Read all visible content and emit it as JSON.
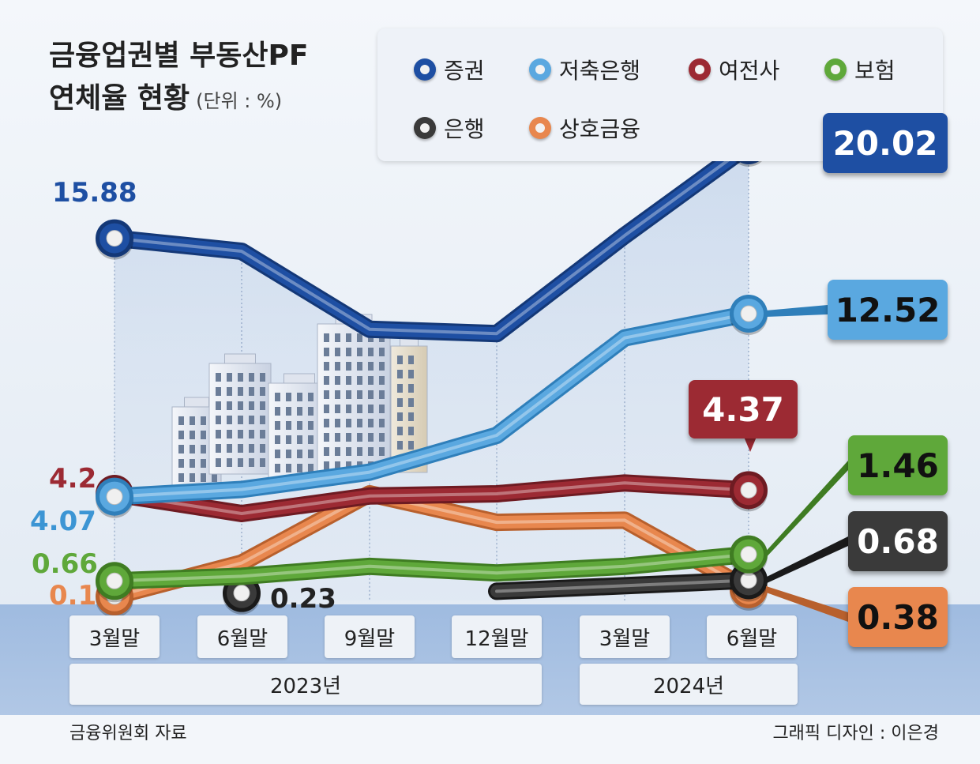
{
  "title_line1": "금융업권별 부동산PF",
  "title_line2": "연체율 현황",
  "unit": "(단위 : %)",
  "source": "금융위원회 자료",
  "credit": "그래픽 디자인 : 이은경",
  "year_labels": [
    "2023년",
    "2024년"
  ],
  "colors": {
    "securities": "#1e4fa3",
    "savings_bank": "#5aa8e0",
    "card_capital": "#9c2a33",
    "insurance": "#5fa83a",
    "bank": "#3a3a3a",
    "mutual_finance": "#e8874e"
  },
  "chart_data": {
    "type": "line",
    "categories": [
      "3월말",
      "6월말",
      "9월말",
      "12월말",
      "3월말",
      "6월말"
    ],
    "series": [
      {
        "name": "증권",
        "values": [
          15.88,
          15.3,
          11.8,
          11.6,
          16.0,
          20.02
        ]
      },
      {
        "name": "저축은행",
        "values": [
          4.07,
          4.4,
          5.2,
          6.9,
          11.4,
          12.52
        ]
      },
      {
        "name": "여전사",
        "values": [
          4.2,
          3.3,
          4.1,
          4.2,
          4.7,
          4.37
        ]
      },
      {
        "name": "보험",
        "values": [
          0.66,
          0.8,
          1.1,
          0.9,
          1.1,
          1.46
        ]
      },
      {
        "name": "은행",
        "values": [
          null,
          0.23,
          null,
          0.3,
          null,
          0.68
        ]
      },
      {
        "name": "상호금융",
        "values": [
          0.1,
          1.2,
          4.2,
          2.9,
          3.0,
          0.38
        ]
      }
    ],
    "labels": {
      "securities_first": "15.88",
      "securities_last": "20.02",
      "savings_first": "4.07",
      "savings_last": "12.52",
      "card_first": "4.2",
      "card_last": "4.37",
      "insurance_first": "0.66",
      "insurance_last": "1.46",
      "bank_first": "0.23",
      "bank_last": "0.68",
      "mutual_first": "0.1",
      "mutual_last": "0.38"
    }
  }
}
